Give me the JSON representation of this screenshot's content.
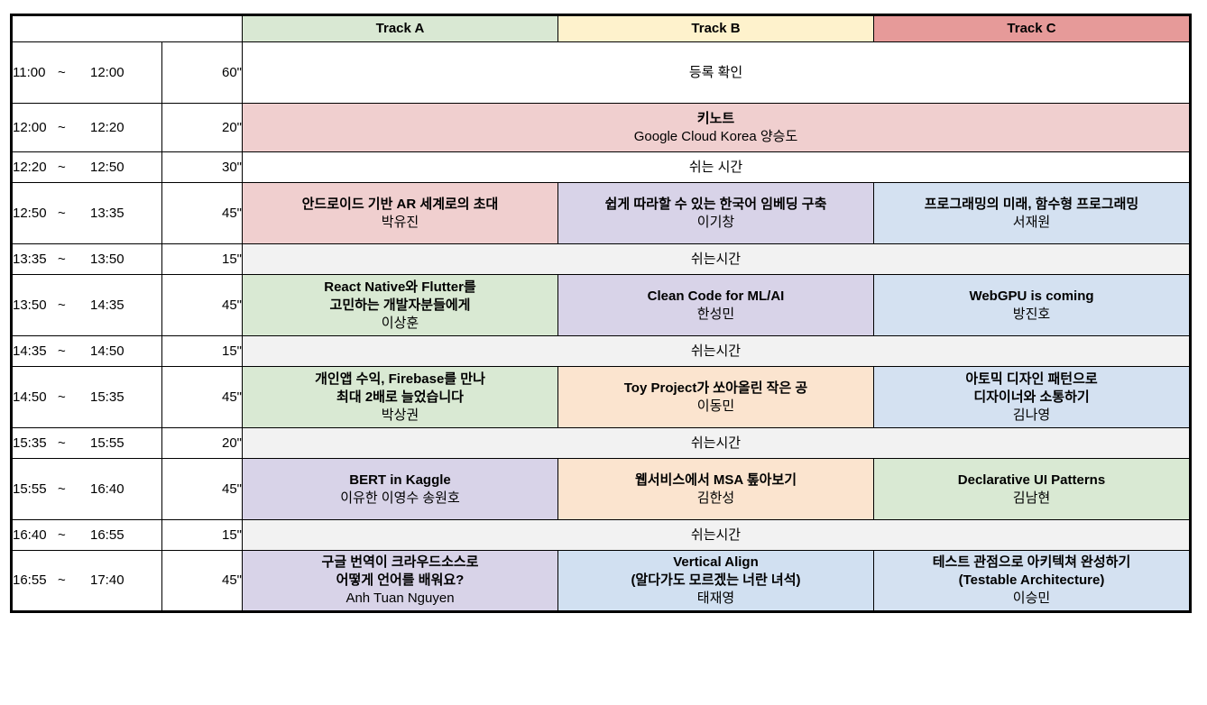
{
  "header": {
    "tracks": [
      "Track A",
      "Track B",
      "Track C"
    ],
    "colors": {
      "track_a": "#d9e8d3",
      "track_b": "#fef2cc",
      "track_c": "#e69a99"
    }
  },
  "rows": [
    {
      "start": "11:00",
      "sep": "~",
      "end": "12:00",
      "dur": "60\"",
      "type": "span",
      "color": "white",
      "title": "",
      "speaker": "등록 확인"
    },
    {
      "start": "12:00",
      "sep": "~",
      "end": "12:20",
      "dur": "20\"",
      "type": "span",
      "color": "pink",
      "title": "키노트",
      "speaker": "Google Cloud Korea 양승도"
    },
    {
      "start": "12:20",
      "sep": "~",
      "end": "12:50",
      "dur": "30\"",
      "type": "span",
      "color": "white",
      "title": "",
      "speaker": "쉬는 시간"
    },
    {
      "start": "12:50",
      "sep": "~",
      "end": "13:35",
      "dur": "45\"",
      "type": "tracks",
      "sessions": [
        {
          "color": "pink",
          "title": [
            "안드로이드 기반 AR 세계로의 초대"
          ],
          "speaker": "박유진"
        },
        {
          "color": "purple",
          "title": [
            "쉽게 따라할 수 있는 한국어 임베딩 구축"
          ],
          "speaker": "이기창"
        },
        {
          "color": "blue",
          "title": [
            "프로그래밍의 미래, 함수형 프로그래밍"
          ],
          "speaker": "서재원"
        }
      ]
    },
    {
      "start": "13:35",
      "sep": "~",
      "end": "13:50",
      "dur": "15\"",
      "type": "span",
      "color": "gray",
      "title": "",
      "speaker": "쉬는시간"
    },
    {
      "start": "13:50",
      "sep": "~",
      "end": "14:35",
      "dur": "45\"",
      "type": "tracks",
      "sessions": [
        {
          "color": "green",
          "title": [
            "React Native와 Flutter를",
            "고민하는 개발자분들에게"
          ],
          "speaker": "이상훈"
        },
        {
          "color": "purple",
          "title": [
            "Clean Code for ML/AI"
          ],
          "speaker": "한성민"
        },
        {
          "color": "blue",
          "title": [
            "WebGPU is coming"
          ],
          "speaker": "방진호"
        }
      ]
    },
    {
      "start": "14:35",
      "sep": "~",
      "end": "14:50",
      "dur": "15\"",
      "type": "span",
      "color": "gray",
      "title": "",
      "speaker": "쉬는시간"
    },
    {
      "start": "14:50",
      "sep": "~",
      "end": "15:35",
      "dur": "45\"",
      "type": "tracks",
      "sessions": [
        {
          "color": "green",
          "title": [
            "개인앱 수익, Firebase를 만나",
            "최대 2배로 늘었습니다"
          ],
          "speaker": "박상권"
        },
        {
          "color": "peach",
          "title": [
            "Toy Project가 쏘아올린 작은 공"
          ],
          "speaker": "이동민"
        },
        {
          "color": "blue",
          "title": [
            "아토믹 디자인 패턴으로",
            "디자이너와 소통하기"
          ],
          "speaker": "김나영"
        }
      ]
    },
    {
      "start": "15:35",
      "sep": "~",
      "end": "15:55",
      "dur": "20\"",
      "type": "span",
      "color": "gray",
      "title": "",
      "speaker": "쉬는시간"
    },
    {
      "start": "15:55",
      "sep": "~",
      "end": "16:40",
      "dur": "45\"",
      "type": "tracks",
      "sessions": [
        {
          "color": "purple",
          "title": [
            "BERT in Kaggle"
          ],
          "speaker": "이유한 이영수 송원호"
        },
        {
          "color": "peach",
          "title": [
            "웹서비스에서 MSA 톺아보기"
          ],
          "speaker": "김한성"
        },
        {
          "color": "green",
          "title": [
            "Declarative UI Patterns"
          ],
          "speaker": "김남현"
        }
      ]
    },
    {
      "start": "16:40",
      "sep": "~",
      "end": "16:55",
      "dur": "15\"",
      "type": "span",
      "color": "gray",
      "title": "",
      "speaker": "쉬는시간"
    },
    {
      "start": "16:55",
      "sep": "~",
      "end": "17:40",
      "dur": "45\"",
      "type": "tracks",
      "sessions": [
        {
          "color": "purple",
          "title": [
            "구글 번역이 크라우드소스로",
            "어떻게 언어를 배워요?"
          ],
          "speaker": "Anh Tuan Nguyen"
        },
        {
          "color": "bluelight",
          "title": [
            "Vertical Align",
            "(알다가도 모르겠는 너란 녀석)"
          ],
          "speaker": "태재영"
        },
        {
          "color": "blue",
          "title": [
            "테스트 관점으로 아키텍쳐 완성하기",
            "(Testable Architecture)"
          ],
          "speaker": "이승민"
        }
      ]
    }
  ]
}
